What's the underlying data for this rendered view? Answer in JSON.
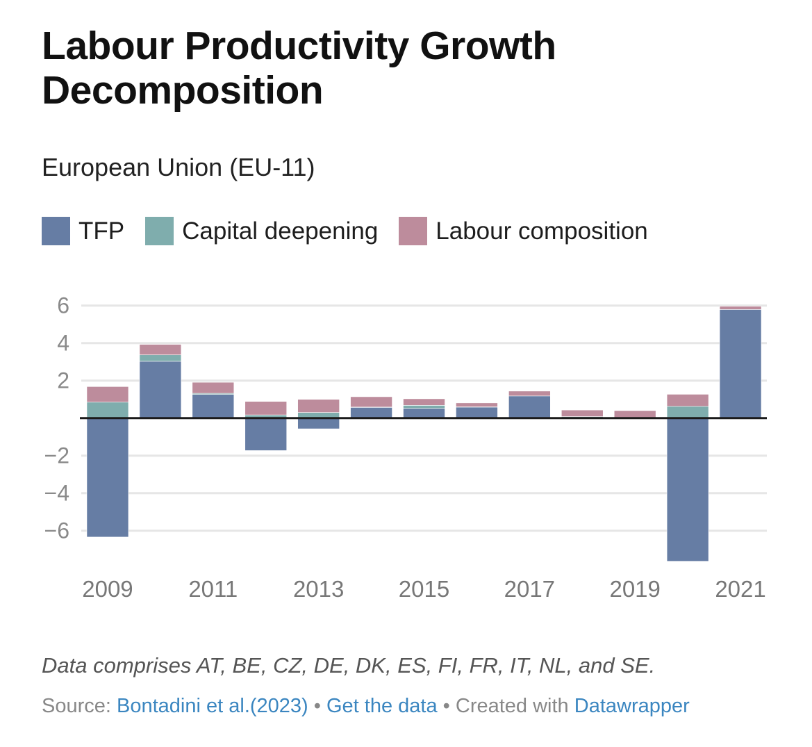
{
  "header": {
    "title": "Labour Productivity Growth Decomposition",
    "subtitle": "European Union (EU-11)"
  },
  "legend": [
    {
      "label": "TFP",
      "color": "#667da4"
    },
    {
      "label": "Capital deepening",
      "color": "#7fadad"
    },
    {
      "label": "Labour composition",
      "color": "#bd8c9c"
    }
  ],
  "footer": {
    "notes": "Data comprises AT, BE, CZ, DE, DK, ES, FI, FR, IT, NL, and SE.",
    "source_prefix": "Source:",
    "source_link": "Bontadini et al.(2023)",
    "separator": "•",
    "get_data": "Get the data",
    "created_with": "Created with",
    "datawrapper": "Datawrapper"
  },
  "chart_data": {
    "type": "bar",
    "stacked": true,
    "title": "Labour Productivity Growth Decomposition",
    "subtitle": "European Union (EU-11)",
    "xlabel": "",
    "ylabel": "",
    "categories": [
      "2009",
      "2010",
      "2011",
      "2012",
      "2013",
      "2014",
      "2015",
      "2016",
      "2017",
      "2018",
      "2019",
      "2020",
      "2021"
    ],
    "x_tick_labels": [
      "2009",
      "2011",
      "2013",
      "2015",
      "2017",
      "2019",
      "2021"
    ],
    "y_ticks": [
      6,
      4,
      2,
      0,
      -2,
      -4,
      -6
    ],
    "y_tick_labels": [
      "6",
      "4",
      "2",
      "",
      "−2",
      "−4",
      "−6"
    ],
    "ylim": [
      -7.63,
      6
    ],
    "grid": true,
    "legend_position": "top-left",
    "series": [
      {
        "name": "TFP",
        "color": "#667da4",
        "values": [
          -6.34,
          3.03,
          1.26,
          -1.73,
          -0.57,
          0.57,
          0.52,
          0.59,
          1.18,
          0.02,
          -0.02,
          -7.63,
          5.79
        ]
      },
      {
        "name": "Capital deepening",
        "color": "#7fadad",
        "values": [
          0.85,
          0.34,
          0.06,
          0.17,
          0.3,
          0.02,
          0.16,
          0.01,
          0.0,
          0.06,
          0.0,
          0.63,
          0.0
        ]
      },
      {
        "name": "Labour composition",
        "color": "#bd8c9c",
        "values": [
          0.83,
          0.56,
          0.59,
          0.72,
          0.7,
          0.55,
          0.35,
          0.21,
          0.26,
          0.35,
          0.4,
          0.64,
          0.17
        ]
      }
    ]
  }
}
